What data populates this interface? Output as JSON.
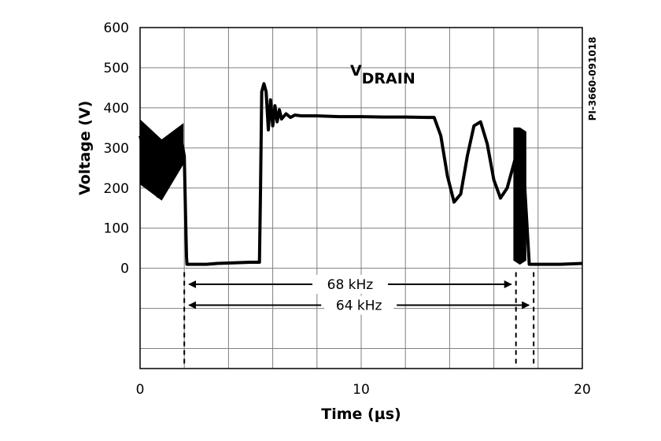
{
  "chart_data": {
    "type": "line",
    "xlabel": "Time (µs)",
    "ylabel": "Voltage (V)",
    "xlim": [
      0,
      20
    ],
    "ylim": [
      -250,
      600
    ],
    "x_ticks": [
      "0",
      "10",
      "20"
    ],
    "y_ticks": [
      "600",
      "500",
      "400",
      "300",
      "200",
      "100",
      "0"
    ],
    "grid": true,
    "vertical_grid_every": 2,
    "trace_label": {
      "main": "V",
      "subscript": "DRAIN",
      "x": 9.5,
      "y": 480
    },
    "series": [
      {
        "x": [
          0.0,
          0.2,
          0.4,
          0.6,
          0.8,
          1.0,
          1.1,
          1.2,
          1.4,
          1.6,
          1.8,
          1.9,
          2.0,
          2.05,
          2.1,
          2.12,
          2.5,
          3.0,
          3.5,
          4.0,
          4.5,
          5.0,
          5.4,
          5.45,
          5.5,
          5.6,
          5.7,
          5.8,
          5.9,
          6.0,
          6.1,
          6.2,
          6.3,
          6.4,
          6.6,
          6.8,
          7.0,
          7.3,
          7.6,
          8.0,
          9.0,
          10.0,
          11.0,
          12.0,
          13.0,
          13.3,
          13.6,
          13.9,
          14.2,
          14.5,
          14.8,
          15.1,
          15.4,
          15.7,
          16.0,
          16.3,
          16.6,
          16.9,
          17.1,
          17.25,
          17.4,
          17.6,
          17.8,
          18.0,
          19.0,
          20.0
        ],
        "y": [
          330,
          290,
          240,
          200,
          180,
          185,
          200,
          230,
          270,
          300,
          315,
          310,
          280,
          150,
          30,
          10,
          10,
          10,
          12,
          13,
          14,
          15,
          15,
          200,
          440,
          460,
          440,
          345,
          420,
          355,
          405,
          365,
          395,
          372,
          385,
          376,
          382,
          380,
          380,
          380,
          378,
          378,
          377,
          377,
          376,
          376,
          330,
          230,
          165,
          185,
          280,
          355,
          365,
          310,
          220,
          175,
          200,
          260,
          300,
          320,
          200,
          10,
          10,
          10,
          10,
          12
        ],
        "x_source": "estimated",
        "y_source": "estimated"
      }
    ],
    "band_fill": [
      {
        "x0": 0.0,
        "x1": 1.95,
        "y_low": [
          210,
          170,
          260
        ],
        "y_high": [
          370,
          320,
          360
        ]
      },
      {
        "x0": 16.9,
        "x1": 17.45,
        "y_low": [
          20,
          10,
          20
        ],
        "y_high": [
          350,
          350,
          340
        ]
      }
    ],
    "markers": [
      {
        "label": "68 kHz",
        "x_start": 2.0,
        "x_end": 17.0,
        "y": -40
      },
      {
        "label": "64 kHz",
        "x_start": 2.0,
        "x_end": 17.8,
        "y": -92
      }
    ],
    "side_label": "PI-3660-091018"
  }
}
